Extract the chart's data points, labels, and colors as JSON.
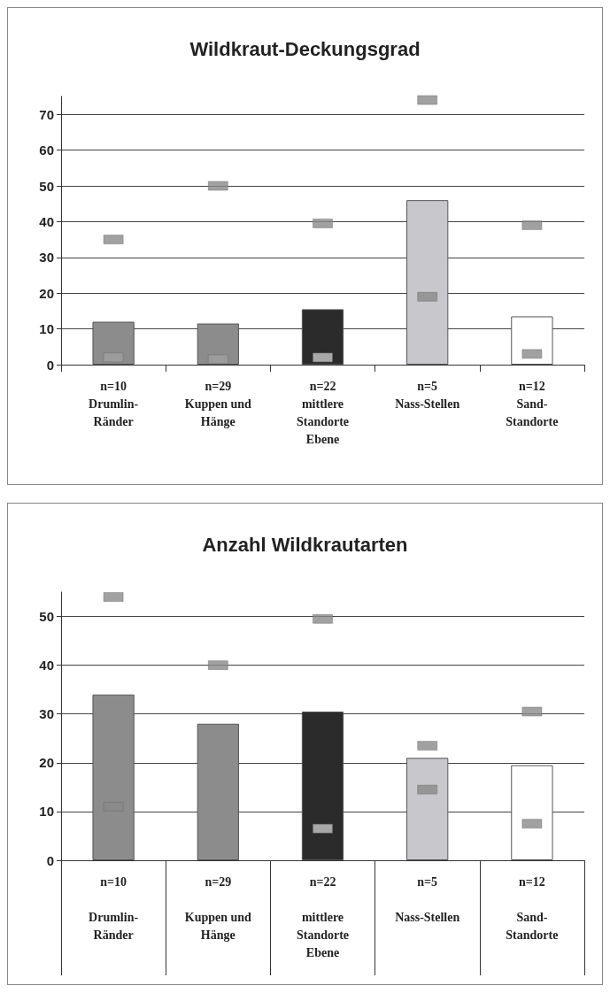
{
  "chart_data": [
    {
      "type": "bar",
      "title": "Wildkraut-Deckungsgrad",
      "categories": [
        "n=10\nDrumlin-\nRänder",
        "n=29\nKuppen und\nHänge",
        "n=22\nmittlere\nStandorte\nEbene",
        "n=5\nNass-Stellen",
        "n=12\nSand-\nStandorte"
      ],
      "colors": [
        "#8c8c8c",
        "#8c8c8c",
        "#2b2b2b",
        "#c8c8cc",
        "#ffffff"
      ],
      "values": [
        12,
        11.5,
        15.5,
        46,
        13.5
      ],
      "series": [
        {
          "type": "scatter",
          "color": "#8a8a8a",
          "x": [
            "n=10\nDrumlin-\nRänder",
            "n=29\nKuppen und\nHänge",
            "n=22\nmittlere\nStandorte\nEbene",
            "n=5\nNass-Stellen",
            "n=12\nSand-\nStandorte"
          ],
          "values": [
            35,
            50,
            39.5,
            74,
            39
          ]
        },
        {
          "type": "scatter",
          "colors": [
            "#a0a0a0",
            "#a0a0a0",
            "#c8c8c8",
            "#8a8a8a",
            "#8a8a8a"
          ],
          "x": [
            "n=10\nDrumlin-\nRänder",
            "n=29\nKuppen und\nHänge",
            "n=22\nmittlere\nStandorte\nEbene",
            "n=5\nNass-Stellen",
            "n=12\nSand-\nStandorte"
          ],
          "values": [
            2,
            1.5,
            2,
            19,
            3
          ]
        }
      ],
      "marker": "square",
      "ylim": [
        0,
        75
      ],
      "yticks": [
        0,
        10,
        20,
        30,
        40,
        50,
        60,
        70
      ],
      "grid": "y"
    },
    {
      "type": "bar",
      "title": "Anzahl Wildkrautarten",
      "categories": [
        "n=10\n\nDrumlin-\nRänder",
        "n=29\n\nKuppen und\nHänge",
        "n=22\n\nmittlere\nStandorte\nEbene",
        "n=5\n\nNass-Stellen",
        "n=12\n\nSand-\nStandorte"
      ],
      "colors": [
        "#8c8c8c",
        "#8c8c8c",
        "#2b2b2b",
        "#c8c8cc",
        "#ffffff"
      ],
      "values": [
        34,
        28,
        30.5,
        21,
        19.5
      ],
      "series": [
        {
          "type": "scatter",
          "color": "#8a8a8a",
          "x": [
            "n=10\n\nDrumlin-\nRänder",
            "n=29\n\nKuppen und\nHänge",
            "n=22\n\nmittlere\nStandorte\nEbene",
            "n=5\n\nNass-Stellen",
            "n=12\n\nSand-\nStandorte"
          ],
          "values": [
            54,
            40,
            49.5,
            23.5,
            30.5
          ]
        },
        {
          "type": "scatter",
          "colors": [
            "#8a8a8a",
            "#a0a0a0",
            "#c8c8c8",
            "#8a8a8a",
            "#8a8a8a"
          ],
          "x": [
            "n=10\n\nDrumlin-\nRänder",
            "n=29\n\nKuppen und\nHänge",
            "n=22\n\nmittlere\nStandorte\nEbene",
            "n=5\n\nNass-Stellen",
            "n=12\n\nSand-\nStandorte"
          ],
          "values": [
            11,
            null,
            6.5,
            14.5,
            7.5
          ]
        }
      ],
      "marker": "square",
      "ylim": [
        0,
        55
      ],
      "yticks": [
        0,
        10,
        20,
        30,
        40,
        50
      ],
      "grid": "y"
    }
  ]
}
